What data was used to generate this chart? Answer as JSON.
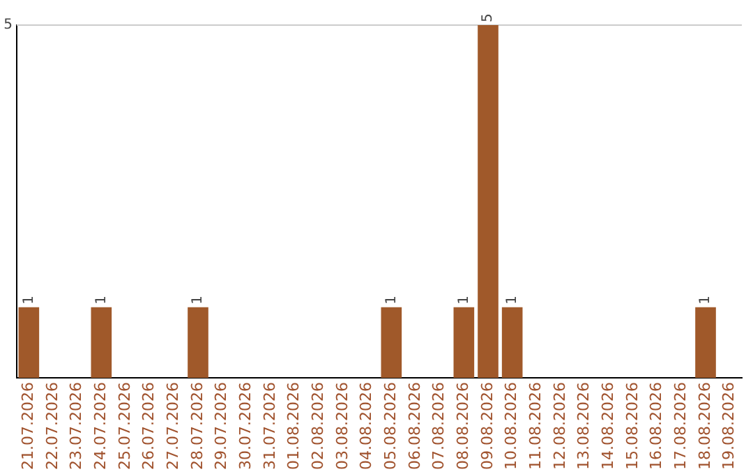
{
  "chart_data": {
    "type": "bar",
    "ylim": [
      0,
      5
    ],
    "categories": [
      "21.07.2026",
      "22.07.2026",
      "23.07.2026",
      "24.07.2026",
      "25.07.2026",
      "26.07.2026",
      "27.07.2026",
      "28.07.2026",
      "29.07.2026",
      "30.07.2026",
      "31.07.2026",
      "01.08.2026",
      "02.08.2026",
      "03.08.2026",
      "04.08.2026",
      "05.08.2026",
      "06.08.2026",
      "07.08.2026",
      "08.08.2026",
      "09.08.2026",
      "10.08.2026",
      "11.08.2026",
      "12.08.2026",
      "13.08.2026",
      "14.08.2026",
      "15.08.2026",
      "16.08.2026",
      "17.08.2026",
      "18.08.2026",
      "19.08.2026"
    ],
    "values": [
      1,
      0,
      0,
      1,
      0,
      0,
      0,
      1,
      0,
      0,
      0,
      0,
      0,
      0,
      0,
      1,
      0,
      0,
      1,
      5,
      1,
      0,
      0,
      0,
      0,
      0,
      0,
      0,
      1,
      0
    ],
    "value_labels": [
      "1",
      null,
      null,
      "1",
      null,
      null,
      null,
      "1",
      null,
      null,
      null,
      null,
      null,
      null,
      null,
      "1",
      null,
      null,
      "1",
      "5",
      "1",
      null,
      null,
      null,
      null,
      null,
      null,
      null,
      "1",
      null
    ],
    "color": "#a0592a",
    "ref_lines": [
      {
        "axis": "y",
        "value": 5,
        "label": "5",
        "color": "#cccccc"
      }
    ],
    "legend": false
  }
}
